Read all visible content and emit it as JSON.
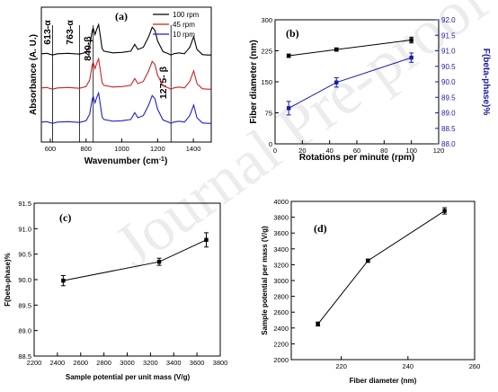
{
  "watermark": "Journal Pre-proof",
  "chart_data": [
    {
      "panel": "(a)",
      "type": "line",
      "xlabel_prefix": "Wavenumber (cm",
      "xlabel_sup": "-1",
      "xlabel_suffix": ")",
      "ylabel": "Absorbance (A. U.)",
      "xlim": [
        550,
        1500
      ],
      "xticks": [
        600,
        800,
        1000,
        1200,
        1400
      ],
      "legend_position": "top-right",
      "annotations": [
        "613-α",
        "763-α",
        "840-β",
        "1275- β"
      ],
      "annotation_x": [
        613,
        763,
        840,
        1275
      ],
      "series": [
        {
          "name": "100 rpm",
          "color": "#000000",
          "offset": 2,
          "x": [
            550,
            580,
            613,
            640,
            700,
            763,
            800,
            820,
            835,
            840,
            850,
            860,
            870,
            880,
            890,
            900,
            950,
            1000,
            1050,
            1072,
            1090,
            1120,
            1150,
            1170,
            1185,
            1200,
            1230,
            1260,
            1275,
            1290,
            1320,
            1350,
            1380,
            1402,
            1420,
            1450,
            1480,
            1500
          ],
          "y": [
            0.3,
            0.31,
            0.27,
            0.3,
            0.31,
            0.29,
            0.33,
            0.48,
            0.85,
            0.9,
            0.75,
            0.88,
            0.98,
            0.7,
            0.42,
            0.36,
            0.32,
            0.33,
            0.36,
            0.52,
            0.4,
            0.45,
            0.7,
            0.92,
            0.85,
            0.6,
            0.35,
            0.3,
            0.27,
            0.3,
            0.32,
            0.3,
            0.45,
            0.7,
            0.4,
            0.28,
            0.27,
            0.27
          ]
        },
        {
          "name": "45 rpm",
          "color": "#d21f1f",
          "offset": 1,
          "x": [
            550,
            580,
            613,
            640,
            700,
            763,
            800,
            820,
            835,
            840,
            850,
            860,
            870,
            880,
            890,
            900,
            950,
            1000,
            1050,
            1072,
            1090,
            1120,
            1150,
            1170,
            1185,
            1200,
            1230,
            1260,
            1275,
            1290,
            1320,
            1350,
            1380,
            1402,
            1420,
            1450,
            1480,
            1500
          ],
          "y": [
            0.3,
            0.31,
            0.27,
            0.3,
            0.31,
            0.29,
            0.33,
            0.48,
            0.85,
            0.9,
            0.75,
            0.88,
            0.98,
            0.7,
            0.42,
            0.36,
            0.32,
            0.33,
            0.36,
            0.52,
            0.4,
            0.45,
            0.7,
            0.92,
            0.85,
            0.6,
            0.35,
            0.3,
            0.27,
            0.3,
            0.32,
            0.3,
            0.45,
            0.7,
            0.4,
            0.28,
            0.27,
            0.27
          ]
        },
        {
          "name": "10  rpm",
          "color": "#1f1fc8",
          "offset": 0,
          "x": [
            550,
            580,
            613,
            640,
            700,
            763,
            800,
            820,
            835,
            840,
            850,
            860,
            870,
            880,
            890,
            900,
            950,
            1000,
            1050,
            1072,
            1090,
            1120,
            1150,
            1170,
            1185,
            1200,
            1230,
            1260,
            1275,
            1290,
            1320,
            1350,
            1380,
            1402,
            1420,
            1450,
            1480,
            1500
          ],
          "y": [
            0.3,
            0.31,
            0.27,
            0.3,
            0.31,
            0.29,
            0.33,
            0.48,
            0.85,
            0.9,
            0.75,
            0.88,
            0.98,
            0.7,
            0.42,
            0.36,
            0.32,
            0.33,
            0.36,
            0.52,
            0.4,
            0.45,
            0.7,
            0.92,
            0.85,
            0.6,
            0.35,
            0.3,
            0.27,
            0.3,
            0.32,
            0.3,
            0.45,
            0.7,
            0.4,
            0.28,
            0.27,
            0.27
          ]
        }
      ]
    },
    {
      "panel": "(b)",
      "type": "line",
      "xlabel": "Rotations per minute (rpm)",
      "ylabel": "Fiber diameter (nm)",
      "ylabel_right": "F(beta-phase)%",
      "xlim": [
        0,
        120
      ],
      "xticks": [
        0,
        20,
        40,
        60,
        80,
        100,
        120
      ],
      "ylim": [
        0,
        300
      ],
      "yticks": [
        0,
        75,
        150,
        225,
        300
      ],
      "ylim_right": [
        88.0,
        92.0
      ],
      "yticks_right": [
        "88.0",
        "88.5",
        "89.0",
        "89.5",
        "90.0",
        "90.5",
        "91.0",
        "91.5",
        "92.0"
      ],
      "series": [
        {
          "axis": "left",
          "color": "#000000",
          "marker": "square",
          "x": [
            10,
            45,
            100
          ],
          "y": [
            213,
            228,
            251
          ],
          "err": [
            4,
            4,
            7
          ]
        },
        {
          "axis": "right",
          "color": "#1a1aa8",
          "marker": "square",
          "x": [
            10,
            45,
            100
          ],
          "y": [
            89.15,
            89.98,
            90.78
          ],
          "err": [
            0.22,
            0.15,
            0.15
          ]
        }
      ]
    },
    {
      "panel": "(c)",
      "type": "line",
      "xlabel": "Sample potential per unit mass (V/g)",
      "ylabel": "F(beta-phase)%",
      "xlim": [
        2200,
        3800
      ],
      "xticks": [
        2200,
        2400,
        2600,
        2800,
        3000,
        3200,
        3400,
        3600,
        3800
      ],
      "ylim": [
        88.5,
        91.5
      ],
      "yticks": [
        "88.5",
        "89.0",
        "89.5",
        "90.0",
        "90.5",
        "91.0",
        "91.5"
      ],
      "series": [
        {
          "color": "#000000",
          "marker": "square",
          "x": [
            2450,
            3275,
            3680
          ],
          "y": [
            89.98,
            90.35,
            90.78
          ],
          "err": [
            0.1,
            0.07,
            0.14
          ]
        }
      ]
    },
    {
      "panel": "(d)",
      "type": "line",
      "xlabel": "Fiber diameter (nm)",
      "ylabel": "Sample potential per mass (V/g)",
      "xlim": [
        205,
        260
      ],
      "xticks": [
        220,
        240,
        260
      ],
      "ylim": [
        2000,
        4000
      ],
      "yticks": [
        2000,
        2200,
        2400,
        2600,
        2800,
        3000,
        3200,
        3400,
        3600,
        3800,
        4000
      ],
      "series": [
        {
          "color": "#000000",
          "marker": "square",
          "x": [
            213,
            228,
            251
          ],
          "y": [
            2450,
            3250,
            3880
          ],
          "err": [
            25,
            20,
            40
          ]
        }
      ]
    }
  ]
}
